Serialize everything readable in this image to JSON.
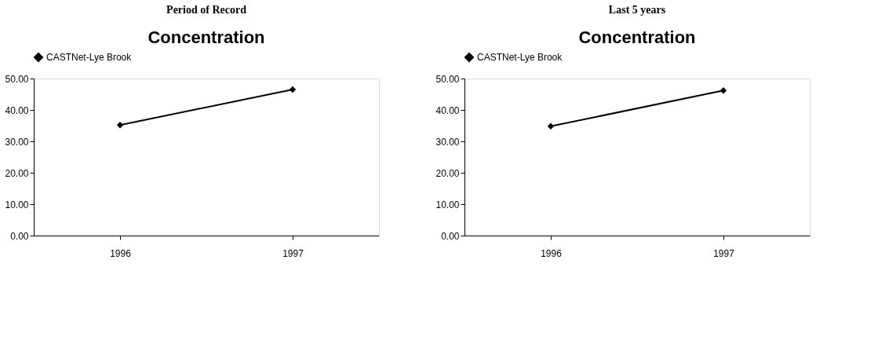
{
  "chart_data": [
    {
      "type": "line",
      "title": "Concentration",
      "annotations": [
        "Period of Record"
      ],
      "categories": [
        "1996",
        "1997"
      ],
      "series": [
        {
          "name": "CASTNet-Lye Brook",
          "color": "#000000",
          "values": [
            35.2,
            46.5
          ]
        }
      ],
      "ylim": [
        0,
        50
      ],
      "yticks": [
        {
          "value": 0,
          "label": "0.00"
        },
        {
          "value": 10,
          "label": "10.00"
        },
        {
          "value": 20,
          "label": "20.00"
        },
        {
          "value": 30,
          "label": "30.00"
        },
        {
          "value": 40,
          "label": "40.00"
        },
        {
          "value": 50,
          "label": "50.00"
        }
      ],
      "grid": false,
      "legend": "top",
      "marker": "diamond",
      "line_style": "solid"
    },
    {
      "type": "line",
      "title": "Concentration",
      "annotations": [
        "Last 5 years"
      ],
      "categories": [
        "1996",
        "1997"
      ],
      "series": [
        {
          "name": "CASTNet-Lye Brook",
          "color": "#000000",
          "values": [
            34.8,
            46.2
          ]
        }
      ],
      "ylim": [
        0,
        50
      ],
      "yticks": [
        {
          "value": 0,
          "label": "0.00"
        },
        {
          "value": 10,
          "label": "10.00"
        },
        {
          "value": 20,
          "label": "20.00"
        },
        {
          "value": 30,
          "label": "30.00"
        },
        {
          "value": 40,
          "label": "40.00"
        },
        {
          "value": 50,
          "label": "50.00"
        }
      ],
      "grid": false,
      "legend": "top",
      "marker": "diamond",
      "line_style": "solid"
    }
  ]
}
